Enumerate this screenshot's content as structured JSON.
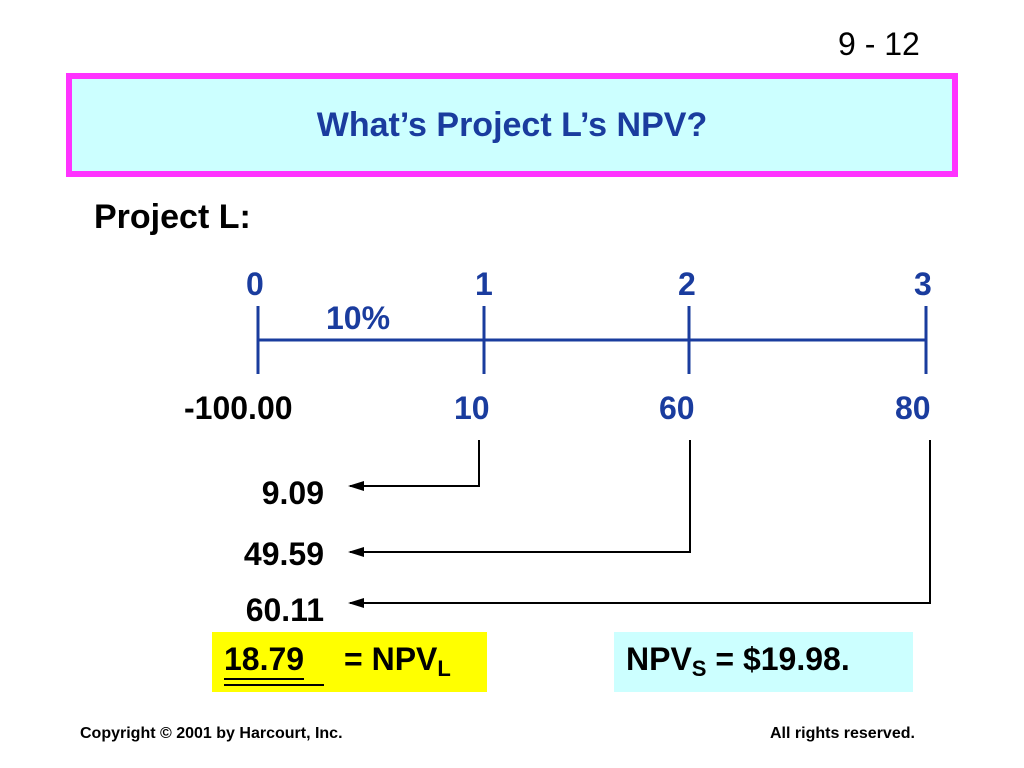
{
  "slide_number": "9 - 12",
  "title": "What’s Project L’s NPV?",
  "project_label": "Project L:",
  "timeline": {
    "periods": [
      "0",
      "1",
      "2",
      "3"
    ],
    "rate": "10%",
    "cash_flows": [
      "-100.00",
      "10",
      "60",
      "80"
    ]
  },
  "present_values": [
    "9.09",
    "49.59",
    "60.11"
  ],
  "npv_l": {
    "value": "18.79",
    "label": "= NPV",
    "subscript": "L"
  },
  "npv_s": {
    "prefix": "NPV",
    "subscript": "S",
    "suffix": " = $19.98."
  },
  "footer": {
    "left": "Copyright © 2001 by Harcourt, Inc.",
    "right": "All rights reserved."
  },
  "colors": {
    "title_text": "#1a3c9e",
    "title_border": "#ff33ff",
    "title_fill": "#ccffff",
    "highlight_yellow": "#ffff00",
    "npv_s_fill": "#ccffff"
  }
}
